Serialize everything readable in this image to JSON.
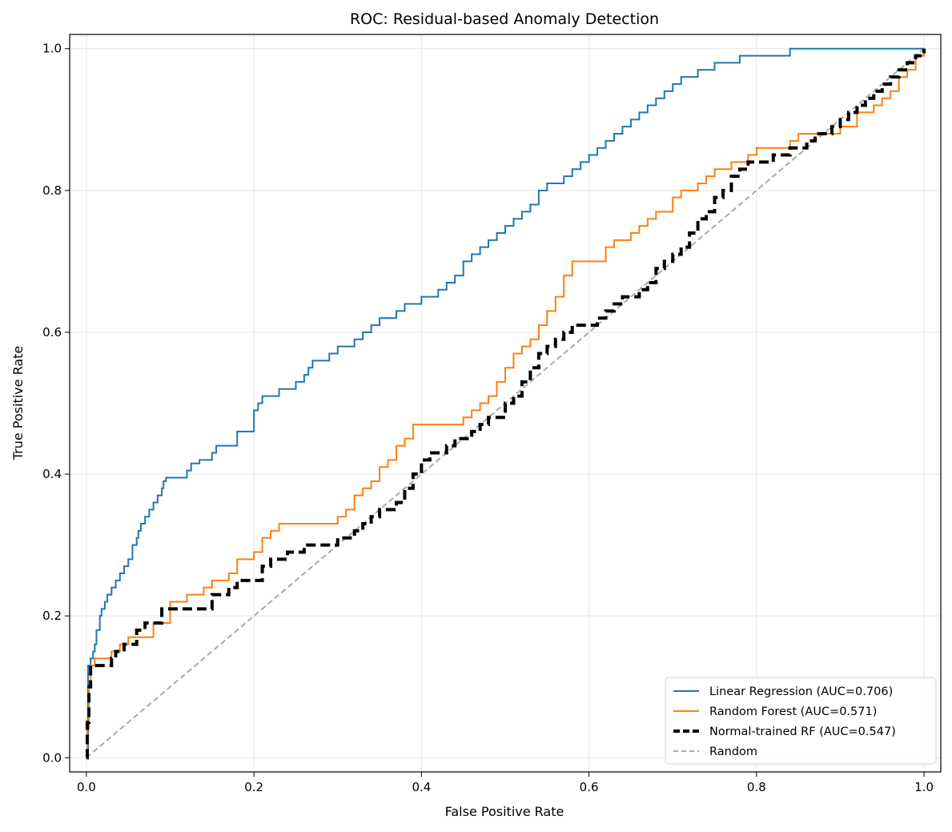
{
  "chart_data": {
    "type": "line",
    "title": "ROC: Residual-based Anomaly Detection",
    "xlabel": "False Positive Rate",
    "ylabel": "True Positive Rate",
    "xlim": [
      -0.02,
      1.02
    ],
    "ylim": [
      -0.02,
      1.02
    ],
    "xticks": [
      "0.0",
      "0.2",
      "0.4",
      "0.6",
      "0.8",
      "1.0"
    ],
    "yticks": [
      "0.0",
      "0.2",
      "0.4",
      "0.6",
      "0.8",
      "1.0"
    ],
    "grid": true,
    "legend_position": "lower-right",
    "series": [
      {
        "name": "Linear Regression (AUC=0.706)",
        "color": "#1f77b4",
        "style": "solid",
        "x": [
          0,
          0.002,
          0.005,
          0.008,
          0.01,
          0.012,
          0.016,
          0.018,
          0.02,
          0.022,
          0.025,
          0.03,
          0.035,
          0.04,
          0.045,
          0.05,
          0.055,
          0.06,
          0.062,
          0.065,
          0.07,
          0.075,
          0.08,
          0.085,
          0.09,
          0.092,
          0.095,
          0.1,
          0.12,
          0.125,
          0.13,
          0.135,
          0.15,
          0.155,
          0.16,
          0.18,
          0.2,
          0.2,
          0.205,
          0.21,
          0.215,
          0.22,
          0.23,
          0.24,
          0.25,
          0.26,
          0.265,
          0.27,
          0.28,
          0.29,
          0.3,
          0.31,
          0.32,
          0.33,
          0.34,
          0.35,
          0.36,
          0.37,
          0.38,
          0.39,
          0.4,
          0.42,
          0.43,
          0.44,
          0.45,
          0.46,
          0.47,
          0.48,
          0.49,
          0.5,
          0.51,
          0.52,
          0.53,
          0.54,
          0.55,
          0.56,
          0.57,
          0.58,
          0.59,
          0.6,
          0.61,
          0.62,
          0.63,
          0.64,
          0.65,
          0.66,
          0.67,
          0.68,
          0.69,
          0.7,
          0.71,
          0.72,
          0.73,
          0.74,
          0.75,
          0.76,
          0.78,
          0.79,
          0.8,
          0.84,
          0.86,
          0.88,
          0.89,
          0.9,
          0.95,
          0.98,
          1.0
        ],
        "y": [
          0,
          0.13,
          0.14,
          0.15,
          0.16,
          0.18,
          0.2,
          0.21,
          0.21,
          0.22,
          0.23,
          0.24,
          0.25,
          0.26,
          0.27,
          0.28,
          0.3,
          0.31,
          0.32,
          0.33,
          0.34,
          0.35,
          0.36,
          0.37,
          0.38,
          0.39,
          0.395,
          0.395,
          0.405,
          0.415,
          0.415,
          0.42,
          0.43,
          0.44,
          0.44,
          0.46,
          0.47,
          0.49,
          0.5,
          0.51,
          0.51,
          0.51,
          0.52,
          0.52,
          0.53,
          0.54,
          0.55,
          0.56,
          0.56,
          0.57,
          0.58,
          0.58,
          0.59,
          0.6,
          0.61,
          0.62,
          0.62,
          0.63,
          0.64,
          0.64,
          0.65,
          0.66,
          0.67,
          0.68,
          0.7,
          0.71,
          0.72,
          0.73,
          0.74,
          0.75,
          0.76,
          0.77,
          0.78,
          0.8,
          0.81,
          0.81,
          0.82,
          0.83,
          0.84,
          0.85,
          0.86,
          0.87,
          0.88,
          0.89,
          0.9,
          0.91,
          0.92,
          0.93,
          0.94,
          0.95,
          0.96,
          0.96,
          0.97,
          0.97,
          0.98,
          0.98,
          0.99,
          0.99,
          0.99,
          1.0,
          1.0,
          1.0,
          1.0,
          1.0,
          1.0,
          1.0,
          1.0
        ]
      },
      {
        "name": "Random Forest (AUC=0.571)",
        "color": "#ff7f0e",
        "style": "solid",
        "x": [
          0,
          0.001,
          0.003,
          0.005,
          0.01,
          0.02,
          0.03,
          0.04,
          0.05,
          0.06,
          0.08,
          0.1,
          0.12,
          0.14,
          0.15,
          0.17,
          0.18,
          0.19,
          0.2,
          0.21,
          0.22,
          0.23,
          0.24,
          0.25,
          0.3,
          0.31,
          0.32,
          0.33,
          0.34,
          0.35,
          0.36,
          0.37,
          0.38,
          0.39,
          0.41,
          0.43,
          0.45,
          0.46,
          0.47,
          0.48,
          0.49,
          0.5,
          0.51,
          0.52,
          0.53,
          0.54,
          0.55,
          0.56,
          0.57,
          0.58,
          0.6,
          0.62,
          0.63,
          0.65,
          0.66,
          0.67,
          0.68,
          0.7,
          0.71,
          0.72,
          0.73,
          0.74,
          0.75,
          0.76,
          0.77,
          0.78,
          0.79,
          0.8,
          0.81,
          0.82,
          0.84,
          0.85,
          0.87,
          0.88,
          0.89,
          0.9,
          0.92,
          0.93,
          0.94,
          0.95,
          0.96,
          0.97,
          0.98,
          0.99,
          1.0
        ],
        "y": [
          0,
          0.04,
          0.1,
          0.13,
          0.14,
          0.14,
          0.15,
          0.16,
          0.17,
          0.17,
          0.19,
          0.22,
          0.23,
          0.24,
          0.25,
          0.26,
          0.28,
          0.28,
          0.29,
          0.31,
          0.32,
          0.33,
          0.33,
          0.33,
          0.34,
          0.35,
          0.37,
          0.38,
          0.39,
          0.41,
          0.42,
          0.44,
          0.45,
          0.47,
          0.47,
          0.47,
          0.48,
          0.49,
          0.5,
          0.51,
          0.53,
          0.55,
          0.57,
          0.58,
          0.59,
          0.61,
          0.63,
          0.65,
          0.68,
          0.7,
          0.7,
          0.72,
          0.73,
          0.74,
          0.75,
          0.76,
          0.77,
          0.79,
          0.8,
          0.8,
          0.81,
          0.82,
          0.83,
          0.83,
          0.84,
          0.84,
          0.85,
          0.86,
          0.86,
          0.86,
          0.87,
          0.88,
          0.88,
          0.88,
          0.88,
          0.89,
          0.91,
          0.91,
          0.92,
          0.93,
          0.94,
          0.96,
          0.97,
          0.99,
          1.0
        ]
      },
      {
        "name": "Normal-trained RF (AUC=0.547)",
        "color": "#000000",
        "style": "dashed-thick",
        "x": [
          0,
          0.001,
          0.003,
          0.005,
          0.01,
          0.02,
          0.03,
          0.035,
          0.045,
          0.06,
          0.07,
          0.09,
          0.1,
          0.15,
          0.16,
          0.17,
          0.18,
          0.19,
          0.2,
          0.21,
          0.22,
          0.23,
          0.24,
          0.25,
          0.26,
          0.28,
          0.3,
          0.31,
          0.32,
          0.33,
          0.34,
          0.35,
          0.36,
          0.37,
          0.38,
          0.39,
          0.4,
          0.41,
          0.42,
          0.43,
          0.44,
          0.45,
          0.46,
          0.47,
          0.48,
          0.49,
          0.5,
          0.51,
          0.52,
          0.53,
          0.54,
          0.55,
          0.56,
          0.57,
          0.58,
          0.6,
          0.61,
          0.62,
          0.63,
          0.64,
          0.65,
          0.66,
          0.67,
          0.68,
          0.69,
          0.7,
          0.71,
          0.72,
          0.73,
          0.74,
          0.75,
          0.76,
          0.77,
          0.78,
          0.79,
          0.8,
          0.82,
          0.84,
          0.86,
          0.87,
          0.88,
          0.89,
          0.9,
          0.91,
          0.92,
          0.93,
          0.94,
          0.95,
          0.96,
          0.97,
          0.98,
          0.99,
          1.0
        ],
        "y": [
          0,
          0.05,
          0.1,
          0.13,
          0.13,
          0.13,
          0.14,
          0.15,
          0.16,
          0.18,
          0.19,
          0.21,
          0.21,
          0.23,
          0.23,
          0.24,
          0.25,
          0.25,
          0.25,
          0.27,
          0.28,
          0.28,
          0.29,
          0.29,
          0.3,
          0.3,
          0.31,
          0.31,
          0.32,
          0.33,
          0.34,
          0.35,
          0.35,
          0.36,
          0.38,
          0.4,
          0.42,
          0.43,
          0.43,
          0.44,
          0.45,
          0.45,
          0.46,
          0.47,
          0.48,
          0.48,
          0.5,
          0.51,
          0.53,
          0.55,
          0.57,
          0.58,
          0.59,
          0.6,
          0.61,
          0.61,
          0.62,
          0.63,
          0.64,
          0.65,
          0.65,
          0.66,
          0.67,
          0.69,
          0.7,
          0.71,
          0.72,
          0.74,
          0.76,
          0.77,
          0.79,
          0.8,
          0.82,
          0.83,
          0.84,
          0.84,
          0.85,
          0.86,
          0.87,
          0.88,
          0.88,
          0.89,
          0.9,
          0.91,
          0.92,
          0.93,
          0.94,
          0.95,
          0.96,
          0.97,
          0.98,
          0.99,
          1.0
        ]
      },
      {
        "name": "Random",
        "color": "#aaaaaa",
        "style": "dashed",
        "x": [
          0,
          1
        ],
        "y": [
          0,
          1
        ]
      }
    ]
  }
}
